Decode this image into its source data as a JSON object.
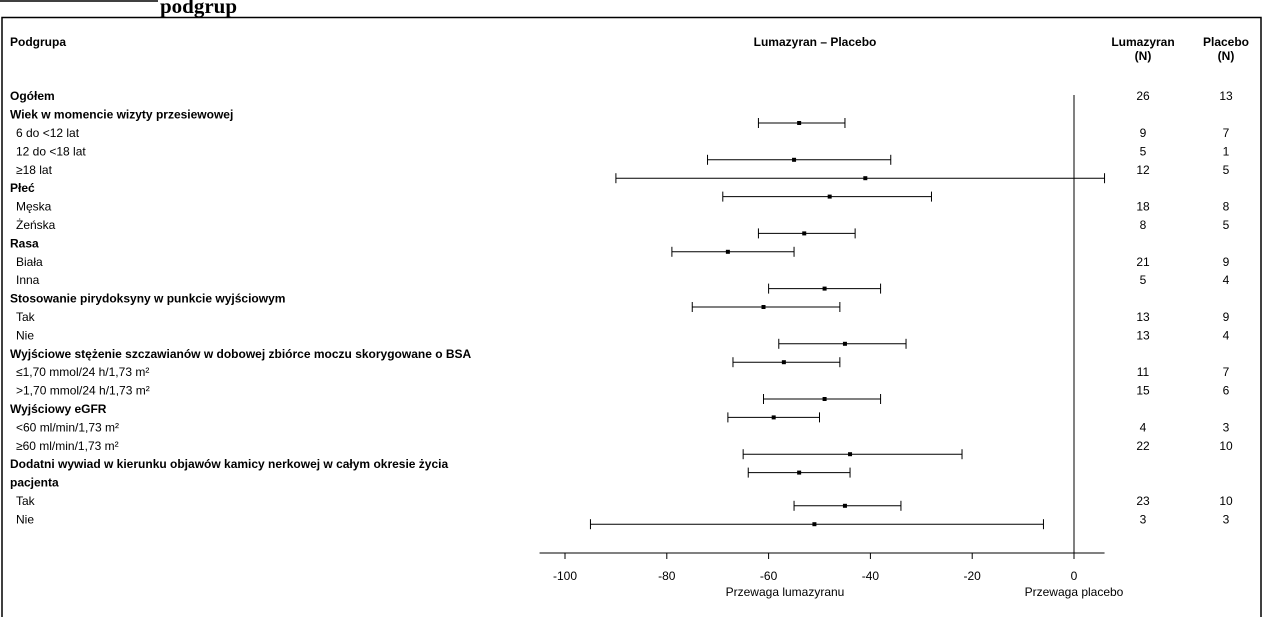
{
  "chart_data": {
    "type": "forest",
    "heading": "podgrup",
    "label_header": "Podgrupa",
    "title": "Lumazyran – Placebo",
    "n_headers": [
      [
        "Lumazyran",
        "(N)"
      ],
      [
        "Placebo",
        "(N)"
      ]
    ],
    "xlim": [
      -105,
      6
    ],
    "xticks": [
      -100,
      -80,
      -60,
      -40,
      -20,
      0
    ],
    "reference_line": 0,
    "annotations": [
      "Przewaga lumazyranu",
      "Przewaga placebo"
    ],
    "groups": [
      {
        "label": [
          "Ogółem"
        ],
        "n": [
          26,
          13
        ],
        "estimate": -54,
        "ci": [
          -62,
          -45
        ],
        "rows": []
      },
      {
        "label": [
          "Wiek w  momencie  wizyty przesiewowej"
        ],
        "rows": [
          {
            "label": "6 do <12 lat",
            "n": [
              9,
              7
            ],
            "estimate": -55,
            "ci": [
              -72,
              -36
            ]
          },
          {
            "label": "12 do <18 lat",
            "n": [
              5,
              1
            ],
            "estimate": -41,
            "ci": [
              -90,
              6
            ]
          },
          {
            "label": "≥18 lat",
            "n": [
              12,
              5
            ],
            "estimate": -48,
            "ci": [
              -69,
              -28
            ]
          }
        ]
      },
      {
        "label": [
          "Płeć"
        ],
        "rows": [
          {
            "label": "Męska",
            "n": [
              18,
              8
            ],
            "estimate": -53,
            "ci": [
              -62,
              -43
            ]
          },
          {
            "label": "Żeńska",
            "n": [
              8,
              5
            ],
            "estimate": -68,
            "ci": [
              -79,
              -55
            ]
          }
        ]
      },
      {
        "label": [
          "Rasa"
        ],
        "rows": [
          {
            "label": "Biała",
            "n": [
              21,
              9
            ],
            "estimate": -49,
            "ci": [
              -60,
              -38
            ]
          },
          {
            "label": "Inna",
            "n": [
              5,
              4
            ],
            "estimate": -61,
            "ci": [
              -75,
              -46
            ]
          }
        ]
      },
      {
        "label": [
          "Stosowanie pirydoksyny w  punkcie wyjściowym"
        ],
        "rows": [
          {
            "label": "Tak",
            "n": [
              13,
              9
            ],
            "estimate": -45,
            "ci": [
              -58,
              -33
            ]
          },
          {
            "label": "Nie",
            "n": [
              13,
              4
            ],
            "estimate": -57,
            "ci": [
              -67,
              -46
            ]
          }
        ]
      },
      {
        "label": [
          "Wyjściowe stężenie szczawianów w  dobowej zbiórce moczu skorygowane o  BSA"
        ],
        "rows": [
          {
            "label": "≤1,70 mmol/24 h/1,73 m²",
            "n": [
              11,
              7
            ],
            "estimate": -49,
            "ci": [
              -61,
              -38
            ]
          },
          {
            "label": ">1,70 mmol/24 h/1,73 m²",
            "n": [
              15,
              6
            ],
            "estimate": -59,
            "ci": [
              -68,
              -50
            ]
          }
        ]
      },
      {
        "label": [
          "Wyjściowy eGFR"
        ],
        "rows": [
          {
            "label": "<60 ml/min/1,73 m²",
            "n": [
              4,
              3
            ],
            "estimate": -44,
            "ci": [
              -65,
              -22
            ]
          },
          {
            "label": "≥60 ml/min/1,73 m²",
            "n": [
              22,
              10
            ],
            "estimate": -54,
            "ci": [
              -64,
              -44
            ]
          }
        ]
      },
      {
        "label": [
          "Dodatni wywiad w kierunku objawów kamicy nerkowej w  całym okresie życia",
          "pacjenta"
        ],
        "rows": [
          {
            "label": "Tak",
            "n": [
              23,
              10
            ],
            "estimate": -45,
            "ci": [
              -55,
              -34
            ]
          },
          {
            "label": "Nie",
            "n": [
              3,
              3
            ],
            "estimate": -51,
            "ci": [
              -95,
              -6
            ]
          }
        ]
      }
    ]
  }
}
